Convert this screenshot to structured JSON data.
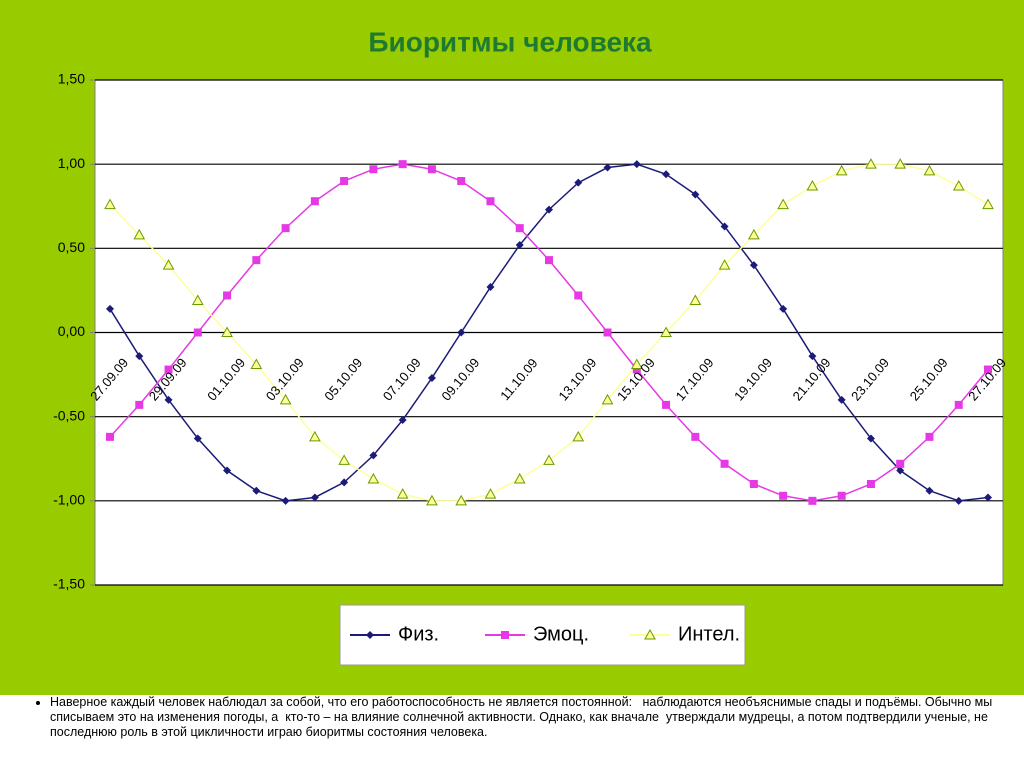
{
  "chart_data": {
    "type": "line",
    "title": "Биоритмы человека",
    "categories": [
      "27.09.09",
      null,
      "29.09.09",
      null,
      "01.10.09",
      null,
      "03.10.09",
      null,
      "05.10.09",
      null,
      "07.10.09",
      null,
      "09.10.09",
      null,
      "11.10.09",
      null,
      "13.10.09",
      null,
      "15.10.09",
      null,
      "17.10.09",
      null,
      "19.10.09",
      null,
      "21.10.09",
      null,
      "23.10.09",
      null,
      "25.10.09",
      null,
      "27.10.09"
    ],
    "series": [
      {
        "name": "Физ.",
        "color": "#1c1c78",
        "marker": "diamond",
        "values": [
          0.14,
          -0.14,
          -0.4,
          -0.63,
          -0.82,
          -0.94,
          -1.0,
          -0.98,
          -0.89,
          -0.73,
          -0.52,
          -0.27,
          0.0,
          0.27,
          0.52,
          0.73,
          0.89,
          0.98,
          1.0,
          0.94,
          0.82,
          0.63,
          0.4,
          0.14,
          -0.14,
          -0.4,
          -0.63,
          -0.82,
          -0.94,
          -1.0,
          -0.98
        ]
      },
      {
        "name": "Эмоц.",
        "color": "#e639e6",
        "marker": "square",
        "values": [
          -0.62,
          -0.43,
          -0.22,
          0.0,
          0.22,
          0.43,
          0.62,
          0.78,
          0.9,
          0.97,
          1.0,
          0.97,
          0.9,
          0.78,
          0.62,
          0.43,
          0.22,
          0.0,
          -0.22,
          -0.43,
          -0.62,
          -0.78,
          -0.9,
          -0.97,
          -1.0,
          -0.97,
          -0.9,
          -0.78,
          -0.62,
          -0.43,
          -0.22
        ]
      },
      {
        "name": "Интел.",
        "color": "#ffff99",
        "marker": "triangle",
        "values": [
          0.76,
          0.58,
          0.4,
          0.19,
          0.0,
          -0.19,
          -0.4,
          -0.62,
          -0.76,
          -0.87,
          -0.96,
          -1.0,
          -1.0,
          -0.96,
          -0.87,
          -0.76,
          -0.62,
          -0.4,
          -0.19,
          0.0,
          0.19,
          0.4,
          0.58,
          0.76,
          0.87,
          0.96,
          1.0,
          1.0,
          0.96,
          0.87,
          0.76
        ]
      }
    ],
    "ylim": [
      -1.5,
      1.5
    ],
    "yticks": [
      {
        "value": -1.5,
        "label": "-1,50"
      },
      {
        "value": -1.0,
        "label": "-1,00"
      },
      {
        "value": -0.5,
        "label": "-0,50"
      },
      {
        "value": 0,
        "label": "0,00"
      },
      {
        "value": 0.5,
        "label": "0,50"
      },
      {
        "value": 1.0,
        "label": "1,00"
      },
      {
        "value": 1.5,
        "label": "1,50"
      }
    ],
    "grid": true,
    "legend": "bottom"
  },
  "caption": "Наверное каждый человек наблюдал за собой, что его работоспособность не является постоянной:   наблюдаются необъяснимые спады и подъёмы. Обычно мы  списываем это на изменения погоды, а  кто-то – на влияние солнечной активности. Однако, как вначале  утверждали мудрецы, а потом подтвердили ученые, не последнюю роль в этой цикличности играю биоритмы состояния человека."
}
